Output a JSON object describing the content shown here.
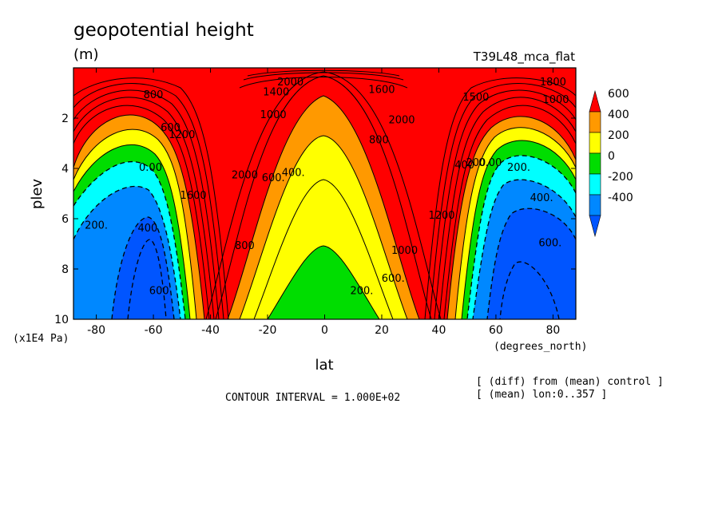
{
  "header": {
    "title": "geopotential height",
    "units": "(m)",
    "run_name": "T39L48_mca_flat"
  },
  "notes": {
    "pressure_unit": "(x1E4 Pa)",
    "x_unit": "(degrees_north)",
    "diff_note": "[ (diff) from (mean) control ]",
    "mean_note": "[ (mean) lon:0..357 ]",
    "contour_interval": "CONTOUR INTERVAL = 1.000E+02"
  },
  "chart_data": {
    "type": "contour",
    "title": "geopotential height",
    "xlabel": "lat",
    "ylabel": "plev",
    "xlim": [
      -88,
      88
    ],
    "ylim": [
      10,
      0
    ],
    "xticks": [
      -80,
      -60,
      -40,
      -20,
      0,
      20,
      40,
      60,
      80
    ],
    "xtick_labels": [
      "-80",
      "-60",
      "-40",
      "-20",
      "0",
      "20",
      "40",
      "60",
      "80"
    ],
    "yticks": [
      2,
      4,
      6,
      8,
      10
    ],
    "ytick_labels": [
      "2",
      "4",
      "6",
      "8",
      "10"
    ],
    "contour_interval": 100,
    "colorbar": {
      "levels": [
        600,
        400,
        200,
        0,
        -200,
        -400
      ],
      "labels": [
        "600",
        "400",
        "200",
        "0",
        "-200",
        "-400"
      ],
      "colors": [
        "#ff0000",
        "#ff9900",
        "#ffff00",
        "#00dd00",
        "#00ffff",
        "#0088ff",
        "#0055ff"
      ]
    },
    "region_colors": {
      "gt600": "#ff0000",
      "400_600": "#ff9900",
      "200_400": "#ffff00",
      "0_200": "#00dd00",
      "m200_0": "#00ffff",
      "m400_m200": "#0088ff",
      "lt_m400": "#0055ff"
    },
    "contour_labels": [
      {
        "text": "2000",
        "lat": -12,
        "plev": 0.7
      },
      {
        "text": "1400",
        "lat": -17,
        "plev": 1.1
      },
      {
        "text": "1000",
        "lat": -18,
        "plev": 2.0
      },
      {
        "text": "600.",
        "lat": -18,
        "plev": 4.5
      },
      {
        "text": "400.",
        "lat": -11,
        "plev": 4.3
      },
      {
        "text": "2000",
        "lat": -28,
        "plev": 4.4
      },
      {
        "text": "1600",
        "lat": -46,
        "plev": 5.2
      },
      {
        "text": "800",
        "lat": -28,
        "plev": 7.2
      },
      {
        "text": "800",
        "lat": -60,
        "plev": 1.2
      },
      {
        "text": "600",
        "lat": -54,
        "plev": 2.5
      },
      {
        "text": "1200",
        "lat": -50,
        "plev": 2.8
      },
      {
        "text": "0.00",
        "lat": -61,
        "plev": 4.1
      },
      {
        "text": "200.",
        "lat": -80,
        "plev": 6.4
      },
      {
        "text": "400",
        "lat": -62,
        "plev": 6.5
      },
      {
        "text": "600",
        "lat": -58,
        "plev": 9.0
      },
      {
        "text": "200.",
        "lat": 13,
        "plev": 9.0
      },
      {
        "text": "800",
        "lat": 19,
        "plev": 3.0
      },
      {
        "text": "2000",
        "lat": 27,
        "plev": 2.2
      },
      {
        "text": "1600",
        "lat": 20,
        "plev": 1.0
      },
      {
        "text": "600.",
        "lat": 24,
        "plev": 8.5
      },
      {
        "text": "1000",
        "lat": 28,
        "plev": 7.4
      },
      {
        "text": "1200",
        "lat": 41,
        "plev": 6.0
      },
      {
        "text": "1500",
        "lat": 53,
        "plev": 1.3
      },
      {
        "text": "1800",
        "lat": 80,
        "plev": 0.7
      },
      {
        "text": "1000",
        "lat": 81,
        "plev": 1.4
      },
      {
        "text": "400",
        "lat": 49,
        "plev": 4.0
      },
      {
        "text": "200",
        "lat": 53,
        "plev": 3.9
      },
      {
        "text": "0.00",
        "lat": 58,
        "plev": 3.9
      },
      {
        "text": "200.",
        "lat": 68,
        "plev": 4.1
      },
      {
        "text": "400.",
        "lat": 76,
        "plev": 5.3
      },
      {
        "text": "600.",
        "lat": 79,
        "plev": 7.1
      }
    ]
  }
}
